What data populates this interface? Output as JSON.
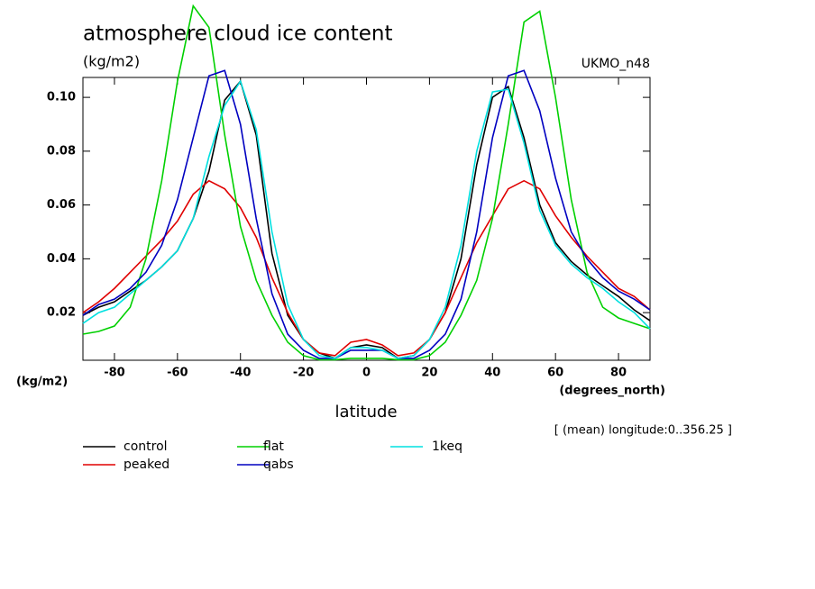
{
  "chart_data": {
    "type": "line",
    "title": "atmosphere cloud ice content",
    "subtitle": "(kg/m2)",
    "model": "UKMO_n48",
    "y_label": "(kg/m2)",
    "x_unit": "(degrees_north)",
    "x_label": "latitude",
    "note": "[ (mean) longitude:0..356.25 ]",
    "x": [
      -90,
      -85,
      -80,
      -75,
      -70,
      -65,
      -60,
      -55,
      -50,
      -45,
      -40,
      -35,
      -30,
      -25,
      -20,
      -15,
      -10,
      -5,
      0,
      5,
      10,
      15,
      20,
      25,
      30,
      35,
      40,
      45,
      50,
      55,
      60,
      65,
      70,
      75,
      80,
      85,
      90
    ],
    "series": [
      {
        "name": "control",
        "color": "#000000",
        "values": [
          0.019,
          0.022,
          0.024,
          0.028,
          0.032,
          0.037,
          0.043,
          0.055,
          0.0725,
          0.099,
          0.106,
          0.086,
          0.042,
          0.019,
          0.01,
          0.005,
          0.003,
          0.007,
          0.008,
          0.007,
          0.003,
          0.004,
          0.01,
          0.02,
          0.04,
          0.075,
          0.1,
          0.104,
          0.085,
          0.06,
          0.046,
          0.039,
          0.034,
          0.03,
          0.026,
          0.021,
          0.017
        ]
      },
      {
        "name": "peaked",
        "color": "#e00000",
        "values": [
          0.02,
          0.024,
          0.029,
          0.035,
          0.041,
          0.047,
          0.054,
          0.064,
          0.069,
          0.066,
          0.059,
          0.048,
          0.033,
          0.02,
          0.01,
          0.005,
          0.004,
          0.009,
          0.01,
          0.008,
          0.004,
          0.005,
          0.01,
          0.02,
          0.033,
          0.046,
          0.056,
          0.066,
          0.069,
          0.066,
          0.056,
          0.048,
          0.041,
          0.035,
          0.029,
          0.026,
          0.021
        ]
      },
      {
        "name": "flat",
        "color": "#00d000",
        "values": [
          0.012,
          0.013,
          0.015,
          0.022,
          0.04,
          0.069,
          0.106,
          0.134,
          0.126,
          0.086,
          0.052,
          0.032,
          0.019,
          0.009,
          0.004,
          0.0025,
          0.0025,
          0.003,
          0.003,
          0.003,
          0.0025,
          0.0025,
          0.004,
          0.009,
          0.019,
          0.032,
          0.055,
          0.09,
          0.128,
          0.132,
          0.1,
          0.062,
          0.035,
          0.022,
          0.018,
          0.016,
          0.014
        ]
      },
      {
        "name": "qabs",
        "color": "#0000c0",
        "values": [
          0.019,
          0.023,
          0.025,
          0.029,
          0.035,
          0.045,
          0.062,
          0.085,
          0.108,
          0.11,
          0.09,
          0.055,
          0.027,
          0.012,
          0.006,
          0.003,
          0.003,
          0.006,
          0.006,
          0.006,
          0.003,
          0.003,
          0.006,
          0.012,
          0.025,
          0.05,
          0.085,
          0.108,
          0.11,
          0.095,
          0.07,
          0.05,
          0.04,
          0.033,
          0.028,
          0.025,
          0.021
        ]
      },
      {
        "name": "1keq",
        "color": "#00e0e0",
        "values": [
          0.016,
          0.02,
          0.022,
          0.027,
          0.032,
          0.037,
          0.043,
          0.055,
          0.078,
          0.097,
          0.106,
          0.088,
          0.05,
          0.023,
          0.01,
          0.004,
          0.003,
          0.007,
          0.007,
          0.006,
          0.003,
          0.004,
          0.01,
          0.022,
          0.045,
          0.08,
          0.102,
          0.103,
          0.083,
          0.058,
          0.045,
          0.038,
          0.033,
          0.029,
          0.024,
          0.02,
          0.014
        ]
      }
    ],
    "xlim": [
      -90,
      90
    ],
    "xticks": [
      -80,
      -60,
      -40,
      -20,
      0,
      20,
      40,
      60,
      80
    ],
    "ylim": [
      0.0023,
      0.1074
    ],
    "yticks": [
      0.02,
      0.04,
      0.06,
      0.08,
      {
        "value": 0.1,
        "label": "0.10"
      }
    ]
  }
}
